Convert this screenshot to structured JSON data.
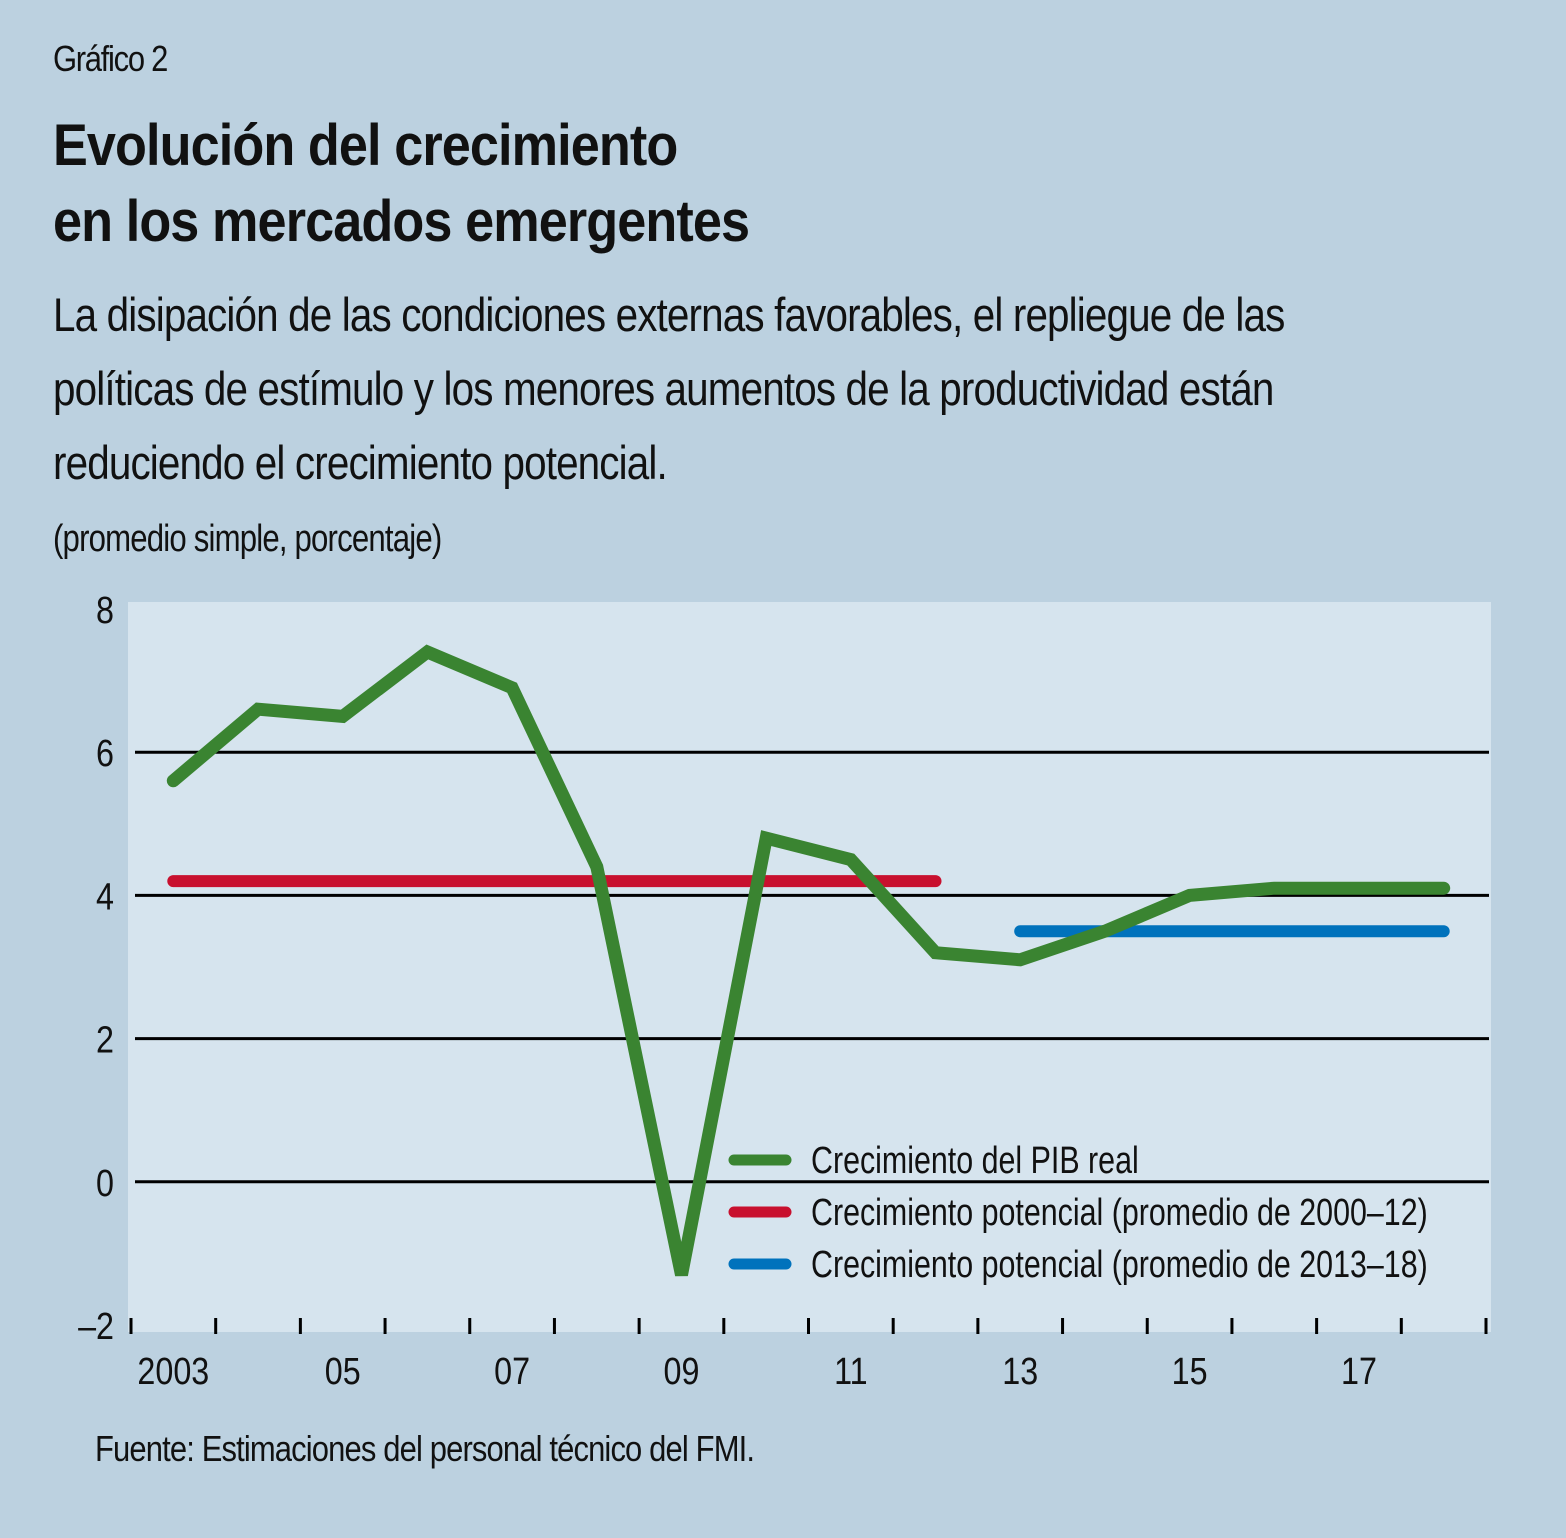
{
  "figure_label": "Gráfico 2",
  "title_lines": [
    "Evolución del crecimiento",
    "en los mercados emergentes"
  ],
  "subtitle_lines": [
    "La disipación de las condiciones externas favorables, el repliegue de las",
    "políticas de estímulo y los menores aumentos de la productividad están",
    "reduciendo el crecimiento potencial."
  ],
  "units": "(promedio simple, porcentaje)",
  "source": "Fuente: Estimaciones del personal técnico del FMI.",
  "colors": {
    "page_background": "#bcd1e0",
    "plot_background": "#d6e4ee",
    "gdp": "#3a8431",
    "potential_2000_12": "#c8102e",
    "potential_2013_18": "#0072bc",
    "gridline": "#000000"
  },
  "chart_data": {
    "type": "line",
    "title": "Evolución del crecimiento en los mercados emergentes",
    "xlabel": "",
    "ylabel": "(promedio simple, porcentaje)",
    "x": [
      2003,
      2004,
      2005,
      2006,
      2007,
      2008,
      2009,
      2010,
      2011,
      2012,
      2013,
      2014,
      2015,
      2016,
      2017,
      2018
    ],
    "xlim": [
      2002.5,
      2018.5
    ],
    "ylim": [
      -2,
      8
    ],
    "y_ticks": [
      -2,
      0,
      2,
      4,
      6,
      8
    ],
    "y_tick_labels": [
      "–2",
      "0",
      "2",
      "4",
      "6",
      "8"
    ],
    "x_tick_labels": [
      {
        "x": 2003,
        "label": "2003"
      },
      {
        "x": 2005,
        "label": "05"
      },
      {
        "x": 2007,
        "label": "07"
      },
      {
        "x": 2009,
        "label": "09"
      },
      {
        "x": 2011,
        "label": "11"
      },
      {
        "x": 2013,
        "label": "13"
      },
      {
        "x": 2015,
        "label": "15"
      },
      {
        "x": 2017,
        "label": "17"
      }
    ],
    "gridlines": [
      0,
      2,
      4,
      6
    ],
    "legend_position": "bottom-right",
    "series": [
      {
        "name": "Crecimiento del PIB real",
        "color": "#3a8431",
        "x": [
          2003,
          2004,
          2005,
          2006,
          2007,
          2008,
          2009,
          2010,
          2011,
          2012,
          2013,
          2014,
          2015,
          2016,
          2017,
          2018
        ],
        "values": [
          5.6,
          6.6,
          6.5,
          7.4,
          6.9,
          4.4,
          -1.3,
          4.8,
          4.5,
          3.2,
          3.1,
          3.5,
          4.0,
          4.1,
          4.1,
          4.1
        ]
      },
      {
        "name": "Crecimiento potencial (promedio de 2000–12)",
        "color": "#c8102e",
        "x": [
          2003,
          2012
        ],
        "values": [
          4.2,
          4.2
        ]
      },
      {
        "name": "Crecimiento potencial (promedio de 2013–18)",
        "color": "#0072bc",
        "x": [
          2013,
          2018
        ],
        "values": [
          3.5,
          3.5
        ]
      }
    ]
  }
}
